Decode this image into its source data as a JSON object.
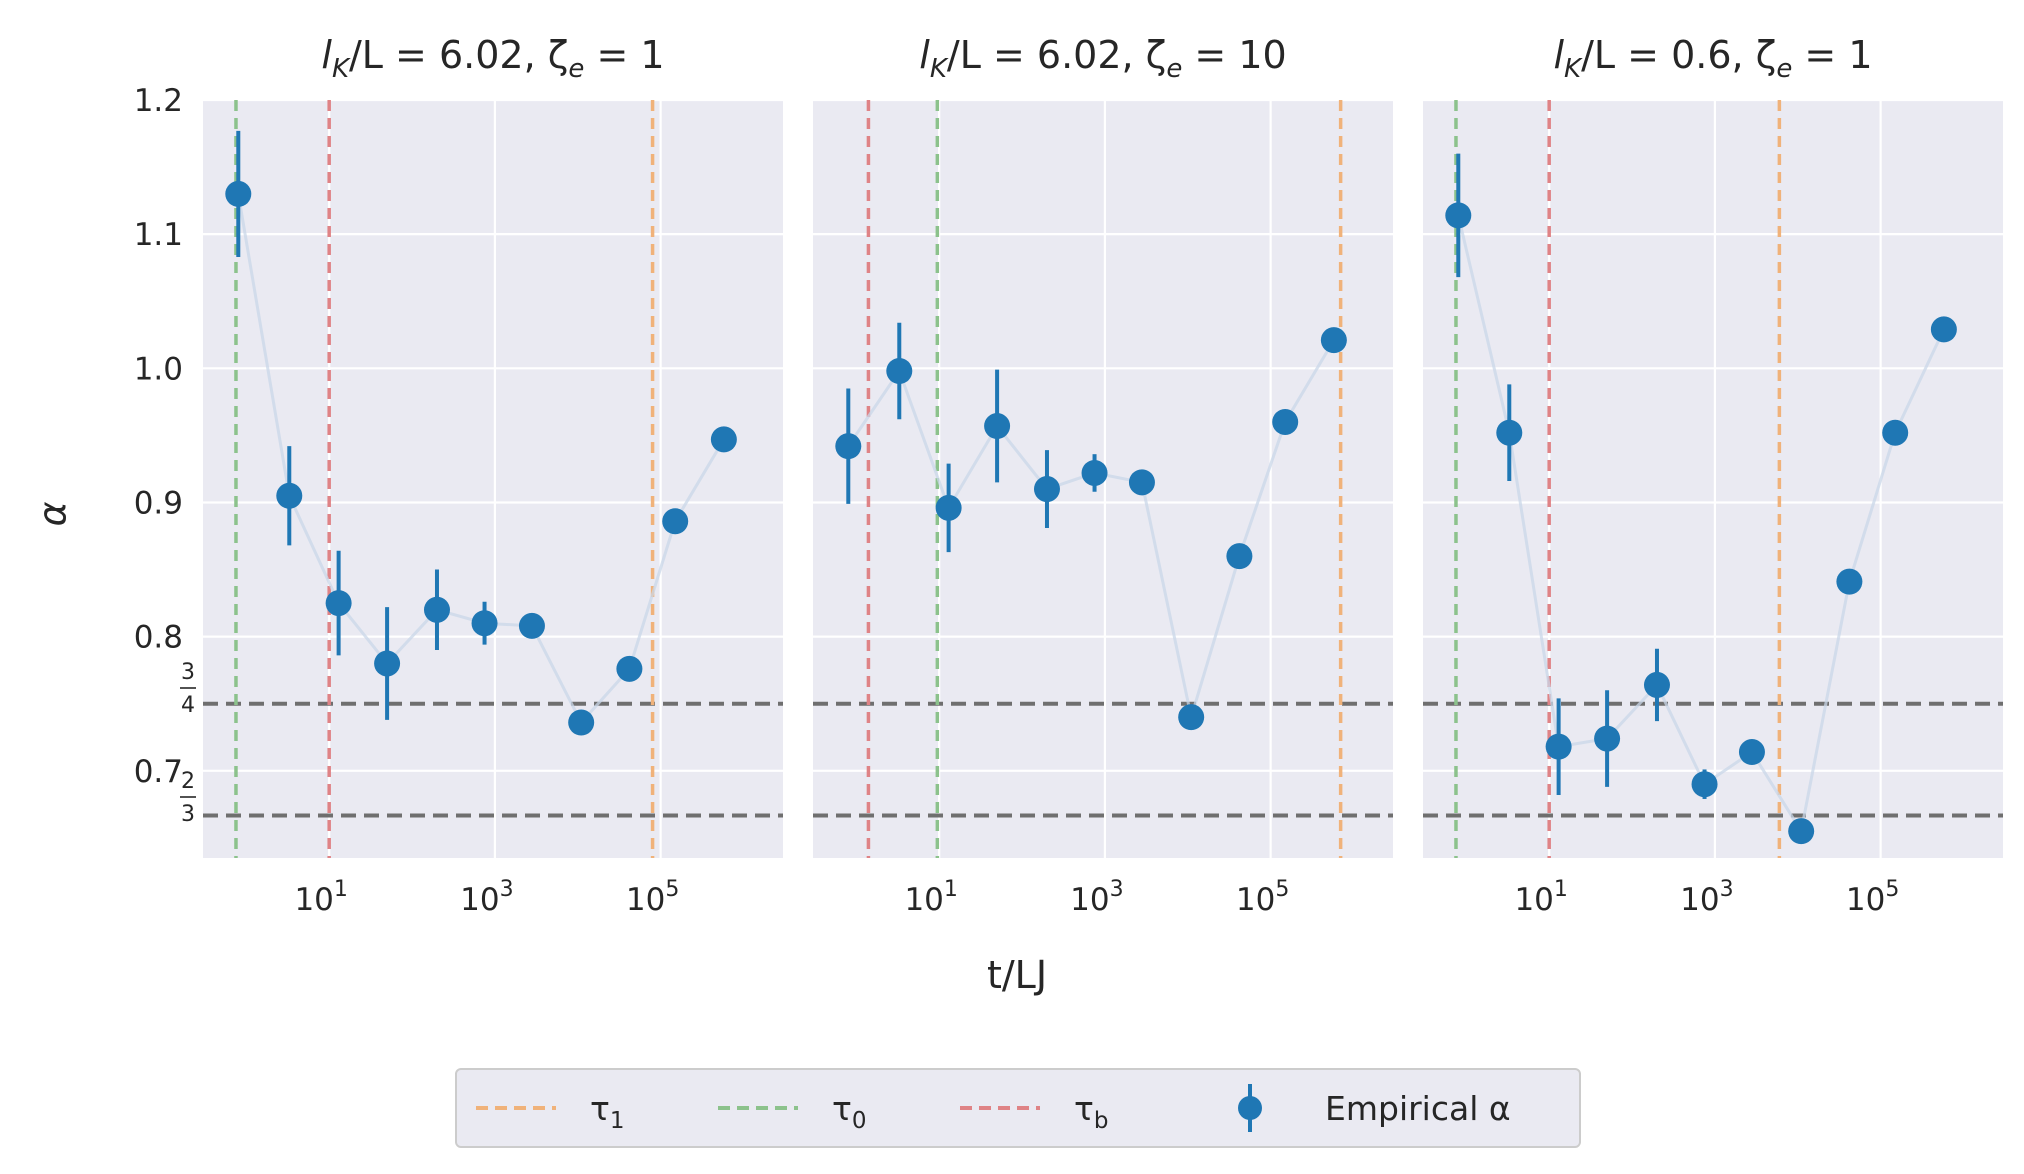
{
  "figure": {
    "xlabel": "t/LJ",
    "ylabel": "α",
    "fraction_labels": [
      {
        "num": "3",
        "den": "4",
        "value": 0.75
      },
      {
        "num": "2",
        "den": "3",
        "value": 0.6667
      }
    ]
  },
  "legend": {
    "items": [
      {
        "id": "tau1",
        "base": "τ",
        "sub": "1",
        "color": "#f0b27a",
        "style": "dashed-line"
      },
      {
        "id": "tau0",
        "base": "τ",
        "sub": "0",
        "color": "#8cc28c",
        "style": "dashed-line"
      },
      {
        "id": "taub",
        "base": "τ",
        "sub": "b",
        "color": "#df8386",
        "style": "dashed-line"
      },
      {
        "id": "empirical",
        "base": "Empirical α",
        "sub": "",
        "color": "#1f77b4",
        "style": "marker-errorbar"
      }
    ]
  },
  "colors": {
    "points": "#1f77b4",
    "connector": "#c9d7e8",
    "tau1": "#f0b27a",
    "tau0": "#8cc28c",
    "taub": "#df8386",
    "reference": "#6f6f6f",
    "panel_background": "#eaeaf2"
  },
  "chart_data": [
    {
      "type": "scatter",
      "title": "l_K/L = 6.02, ζ_e = 1",
      "title_parts": {
        "pre": "l",
        "pre_sub": "K",
        "mid": "/L = 6.02, ζ",
        "mid_sub": "e",
        "post": " = 1"
      },
      "xscale": "log",
      "xlim": [
        0.3,
        3000000
      ],
      "ylim": [
        0.635,
        1.2
      ],
      "xticks": [
        {
          "value": 10,
          "base": "10",
          "exp": "1"
        },
        {
          "value": 1000,
          "base": "10",
          "exp": "3"
        },
        {
          "value": 100000,
          "base": "10",
          "exp": "5"
        }
      ],
      "yticks": [
        {
          "value": 0.7,
          "label": "0.7"
        },
        {
          "value": 0.8,
          "label": "0.8"
        },
        {
          "value": 0.9,
          "label": "0.9"
        },
        {
          "value": 1.0,
          "label": "1.0"
        },
        {
          "value": 1.1,
          "label": "1.1"
        },
        {
          "value": 1.2,
          "label": "1.2"
        }
      ],
      "reference_lines": [
        0.75,
        0.6667
      ],
      "vlines": {
        "tau0": 0.75,
        "taub": 10,
        "tau1": 80000
      },
      "series": [
        {
          "name": "Empirical α",
          "x": [
            0.8,
            3.3,
            13,
            50,
            200,
            750,
            2800,
            11000,
            42000,
            150000,
            580000
          ],
          "y": [
            1.13,
            0.905,
            0.825,
            0.78,
            0.82,
            0.81,
            0.808,
            0.736,
            0.776,
            0.886,
            0.947
          ],
          "yerr": [
            0.047,
            0.037,
            0.039,
            0.042,
            0.03,
            0.016,
            0.0,
            0.0,
            0.0,
            0.0,
            0.0
          ]
        }
      ]
    },
    {
      "type": "scatter",
      "title": "l_K/L = 6.02, ζ_e = 10",
      "title_parts": {
        "pre": "l",
        "pre_sub": "K",
        "mid": "/L = 6.02, ζ",
        "mid_sub": "e",
        "post": " = 10"
      },
      "xscale": "log",
      "xlim": [
        0.3,
        3000000
      ],
      "ylim": [
        0.635,
        1.2
      ],
      "xticks": [
        {
          "value": 10,
          "base": "10",
          "exp": "1"
        },
        {
          "value": 1000,
          "base": "10",
          "exp": "3"
        },
        {
          "value": 100000,
          "base": "10",
          "exp": "5"
        }
      ],
      "yticks": [
        {
          "value": 0.7,
          "label": ""
        },
        {
          "value": 0.8,
          "label": ""
        },
        {
          "value": 0.9,
          "label": ""
        },
        {
          "value": 1.0,
          "label": ""
        },
        {
          "value": 1.1,
          "label": ""
        },
        {
          "value": 1.2,
          "label": ""
        }
      ],
      "reference_lines": [
        0.75,
        0.6667
      ],
      "vlines": {
        "tau0": 9.5,
        "taub": 1.4,
        "tau1": 700000
      },
      "series": [
        {
          "name": "Empirical α",
          "x": [
            0.8,
            3.3,
            13,
            50,
            200,
            750,
            2800,
            11000,
            42000,
            150000,
            580000
          ],
          "y": [
            0.942,
            0.998,
            0.896,
            0.957,
            0.91,
            0.922,
            0.915,
            0.74,
            0.86,
            0.96,
            1.021
          ],
          "yerr": [
            0.043,
            0.036,
            0.033,
            0.042,
            0.029,
            0.014,
            0.0,
            0.0,
            0.0,
            0.0,
            0.0
          ]
        }
      ]
    },
    {
      "type": "scatter",
      "title": "l_K/L = 0.6, ζ_e = 1",
      "title_parts": {
        "pre": "l",
        "pre_sub": "K",
        "mid": "/L = 0.6, ζ",
        "mid_sub": "e",
        "post": " = 1"
      },
      "xscale": "log",
      "xlim": [
        0.3,
        3000000
      ],
      "ylim": [
        0.635,
        1.2
      ],
      "xticks": [
        {
          "value": 10,
          "base": "10",
          "exp": "1"
        },
        {
          "value": 1000,
          "base": "10",
          "exp": "3"
        },
        {
          "value": 100000,
          "base": "10",
          "exp": "5"
        }
      ],
      "yticks": [
        {
          "value": 0.7,
          "label": ""
        },
        {
          "value": 0.8,
          "label": ""
        },
        {
          "value": 0.9,
          "label": ""
        },
        {
          "value": 1.0,
          "label": ""
        },
        {
          "value": 1.1,
          "label": ""
        },
        {
          "value": 1.2,
          "label": ""
        }
      ],
      "reference_lines": [
        0.75,
        0.6667
      ],
      "vlines": {
        "tau0": 0.75,
        "taub": 10,
        "tau1": 6000
      },
      "series": [
        {
          "name": "Empirical α",
          "x": [
            0.8,
            3.3,
            13,
            50,
            200,
            750,
            2800,
            11000,
            42000,
            150000,
            580000
          ],
          "y": [
            1.114,
            0.952,
            0.718,
            0.724,
            0.764,
            0.69,
            0.714,
            0.655,
            0.841,
            0.952,
            1.029
          ],
          "yerr": [
            0.046,
            0.036,
            0.036,
            0.036,
            0.027,
            0.011,
            0.0,
            0.0,
            0.0,
            0.0,
            0.0
          ]
        }
      ]
    }
  ]
}
